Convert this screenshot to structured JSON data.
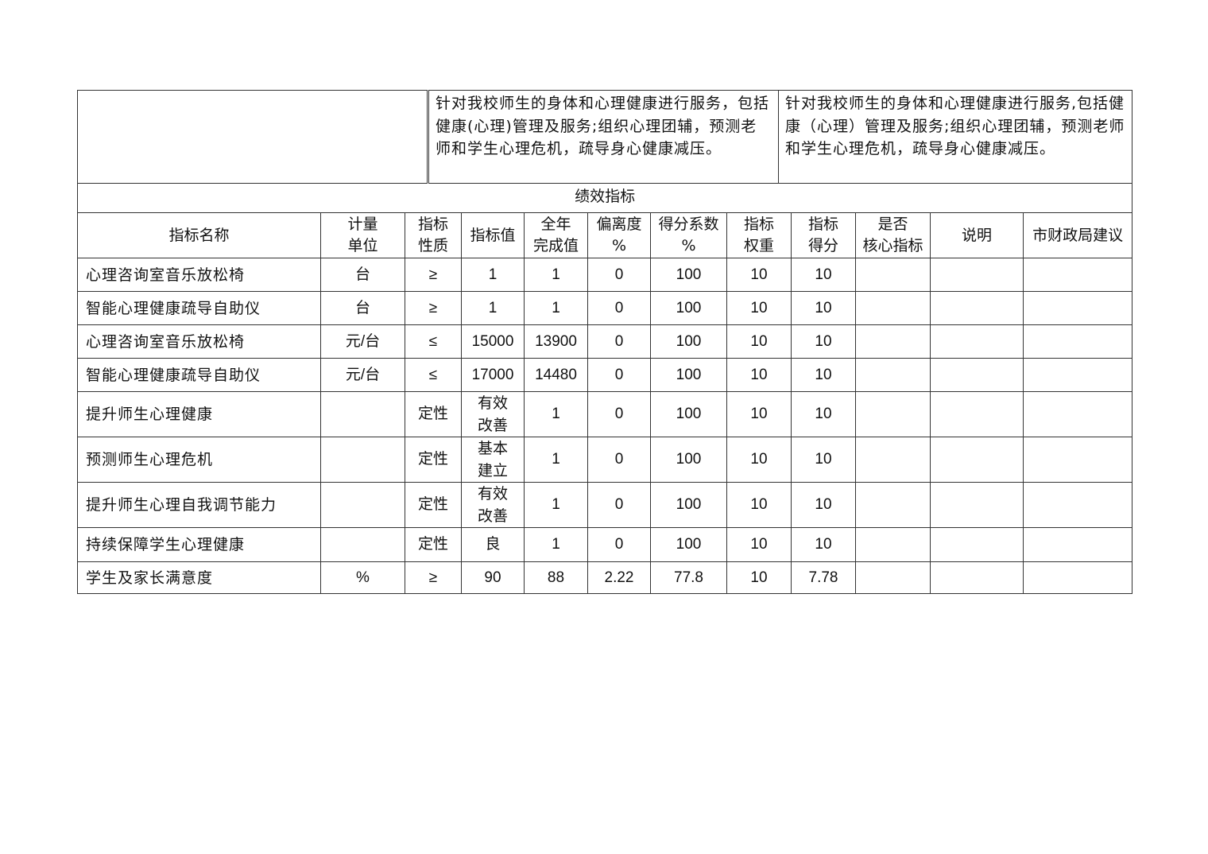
{
  "top_row": {
    "blank": "",
    "content_a": "针对我校师生的身体和心理健康进行服务，包括健康(心理)管理及服务;组织心理团辅，预测老师和学生心理危机，疏导身心健康减压。",
    "content_b": "针对我校师生的身体和心理健康进行服务,包括健康（心理）管理及服务;组织心理团辅，预测老师和学生心理危机，疏导身心健康减压。"
  },
  "section_title": "绩效指标",
  "headers": [
    "指标名称",
    "计量单位",
    "指标性质",
    "指标值",
    "全年完成值",
    "偏离度%",
    "得分系数%",
    "指标权重",
    "指标得分",
    "是否核心指标",
    "说明",
    "市财政局建议"
  ],
  "rows": [
    [
      "心理咨询室音乐放松椅",
      "台",
      "≥",
      "1",
      "1",
      "0",
      "100",
      "10",
      "10",
      "",
      "",
      ""
    ],
    [
      "智能心理健康疏导自助仪",
      "台",
      "≥",
      "1",
      "1",
      "0",
      "100",
      "10",
      "10",
      "",
      "",
      ""
    ],
    [
      "心理咨询室音乐放松椅",
      "元/台",
      "≤",
      "15000",
      "13900",
      "0",
      "100",
      "10",
      "10",
      "",
      "",
      ""
    ],
    [
      "智能心理健康疏导自助仪",
      "元/台",
      "≤",
      "17000",
      "14480",
      "0",
      "100",
      "10",
      "10",
      "",
      "",
      ""
    ],
    [
      "提升师生心理健康",
      "",
      "定性",
      "有效改善",
      "1",
      "0",
      "100",
      "10",
      "10",
      "",
      "",
      ""
    ],
    [
      "预测师生心理危机",
      "",
      "定性",
      "基本建立",
      "1",
      "0",
      "100",
      "10",
      "10",
      "",
      "",
      ""
    ],
    [
      "提升师生心理自我调节能力",
      "",
      "定性",
      "有效改善",
      "1",
      "0",
      "100",
      "10",
      "10",
      "",
      "",
      ""
    ],
    [
      "持续保障学生心理健康",
      "",
      "定性",
      "良",
      "1",
      "0",
      "100",
      "10",
      "10",
      "",
      "",
      ""
    ],
    [
      "学生及家长满意度",
      "%",
      "≥",
      "90",
      "88",
      "2.22",
      "77.8",
      "10",
      "7.78",
      "",
      "",
      ""
    ]
  ]
}
